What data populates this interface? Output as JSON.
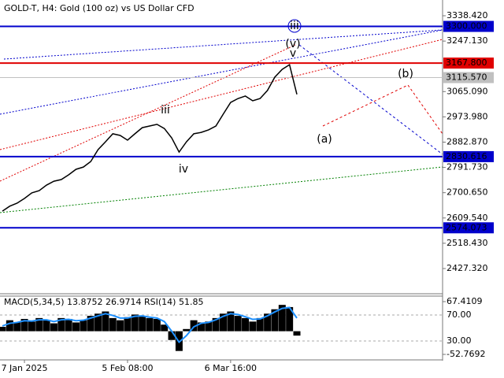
{
  "chart_data": [
    {
      "type": "line",
      "title": "GOLD-T, H4:  Gold (100 oz) vs US Dollar CFD",
      "categories": [
        null,
        null,
        null,
        "7 Jan 2025",
        null,
        null,
        null,
        null,
        null,
        null,
        null,
        null,
        null,
        null,
        null,
        null,
        null,
        "5 Feb 08:00",
        null,
        null,
        null,
        null,
        null,
        null,
        null,
        null,
        null,
        null,
        null,
        null,
        null,
        "6 Mar 16:00",
        null,
        null,
        null,
        null,
        null,
        null,
        null,
        null,
        null
      ],
      "series": [
        {
          "color": "#000000",
          "values": [
            2634,
            2652,
            2663,
            2680,
            2700,
            2708,
            2728,
            2742,
            2748,
            2765,
            2785,
            2793,
            2813,
            2856,
            2884,
            2913,
            2907,
            2890,
            2913,
            2935,
            2941,
            2947,
            2932,
            2898,
            2847,
            2884,
            2913,
            2918,
            2927,
            2941,
            2984,
            3026,
            3040,
            3049,
            3032,
            3040,
            3069,
            3117,
            3145,
            3162,
            3055
          ]
        }
      ],
      "ylim": [
        2339.3,
        3389.5
      ],
      "yticks": [
        {
          "value": 3338.42,
          "label": "3338.420"
        },
        {
          "value": 3247.13,
          "label": "3247.130"
        },
        {
          "value": 3065.09,
          "label": "3065.090"
        },
        {
          "value": 2973.98,
          "label": "2973.980"
        },
        {
          "value": 2882.87,
          "label": "2882.870"
        },
        {
          "value": 2791.73,
          "label": "2791.730"
        },
        {
          "value": 2700.65,
          "label": "2700.650"
        },
        {
          "value": 2609.54,
          "label": "2609.540"
        },
        {
          "value": 2518.43,
          "label": "2518.430"
        },
        {
          "value": 2427.32,
          "label": "2427.320"
        }
      ],
      "levels": [
        {
          "value": 3300,
          "label": "3300.000",
          "color": "#0000cc"
        },
        {
          "value": 3167.8,
          "label": "3167.800",
          "color": "#e00000"
        },
        {
          "value": 3115.57,
          "label": "3115.570",
          "color": "#c0c0c0"
        },
        {
          "value": 2830.616,
          "label": "2830.616",
          "color": "#0000cc"
        },
        {
          "value": 2574.073,
          "label": "2574.073",
          "color": "#0000cc"
        }
      ],
      "annotations": [
        {
          "text": "iii",
          "color": "#808080"
        },
        {
          "text": "iv",
          "color": "#808080"
        },
        {
          "text": "v",
          "color": "#808080"
        },
        {
          "text": "(v)",
          "color": "#e00000"
        },
        {
          "text": "iii",
          "color": "#0000cc"
        },
        {
          "text": "(a)",
          "color": "#e00000"
        },
        {
          "text": "(b)",
          "color": "#e00000"
        }
      ]
    },
    {
      "type": "macd",
      "title": "MACD(5,34,5) 13.8752 26.9714 RSI(14) 51.85",
      "series": [
        {
          "color": "#000000",
          "values": [
            10,
            25,
            20,
            28,
            22,
            30,
            25,
            18,
            30,
            28,
            20,
            25,
            35,
            40,
            45,
            30,
            25,
            32,
            38,
            35,
            30,
            28,
            15,
            -20,
            -45,
            5,
            25,
            20,
            22,
            30,
            40,
            45,
            35,
            30,
            22,
            30,
            40,
            50,
            60,
            55,
            -10
          ]
        },
        {
          "color": "#1e90ff",
          "values": [
            12,
            18,
            20,
            24,
            23,
            26,
            26,
            22,
            26,
            27,
            24,
            25,
            30,
            35,
            40,
            36,
            30,
            30,
            34,
            35,
            32,
            30,
            22,
            0,
            -25,
            -10,
            10,
            18,
            20,
            26,
            34,
            40,
            38,
            33,
            27,
            28,
            35,
            44,
            52,
            54,
            30
          ]
        }
      ],
      "ylim": [
        -63.5,
        80
      ],
      "yticks": [
        67.4109,
        -52.7692
      ],
      "y2lim": [
        2.1,
        99.1
      ],
      "y2ticks": [
        {
          "value": 70,
          "label": "70.00"
        },
        {
          "value": 30,
          "label": "30.00"
        }
      ]
    }
  ]
}
